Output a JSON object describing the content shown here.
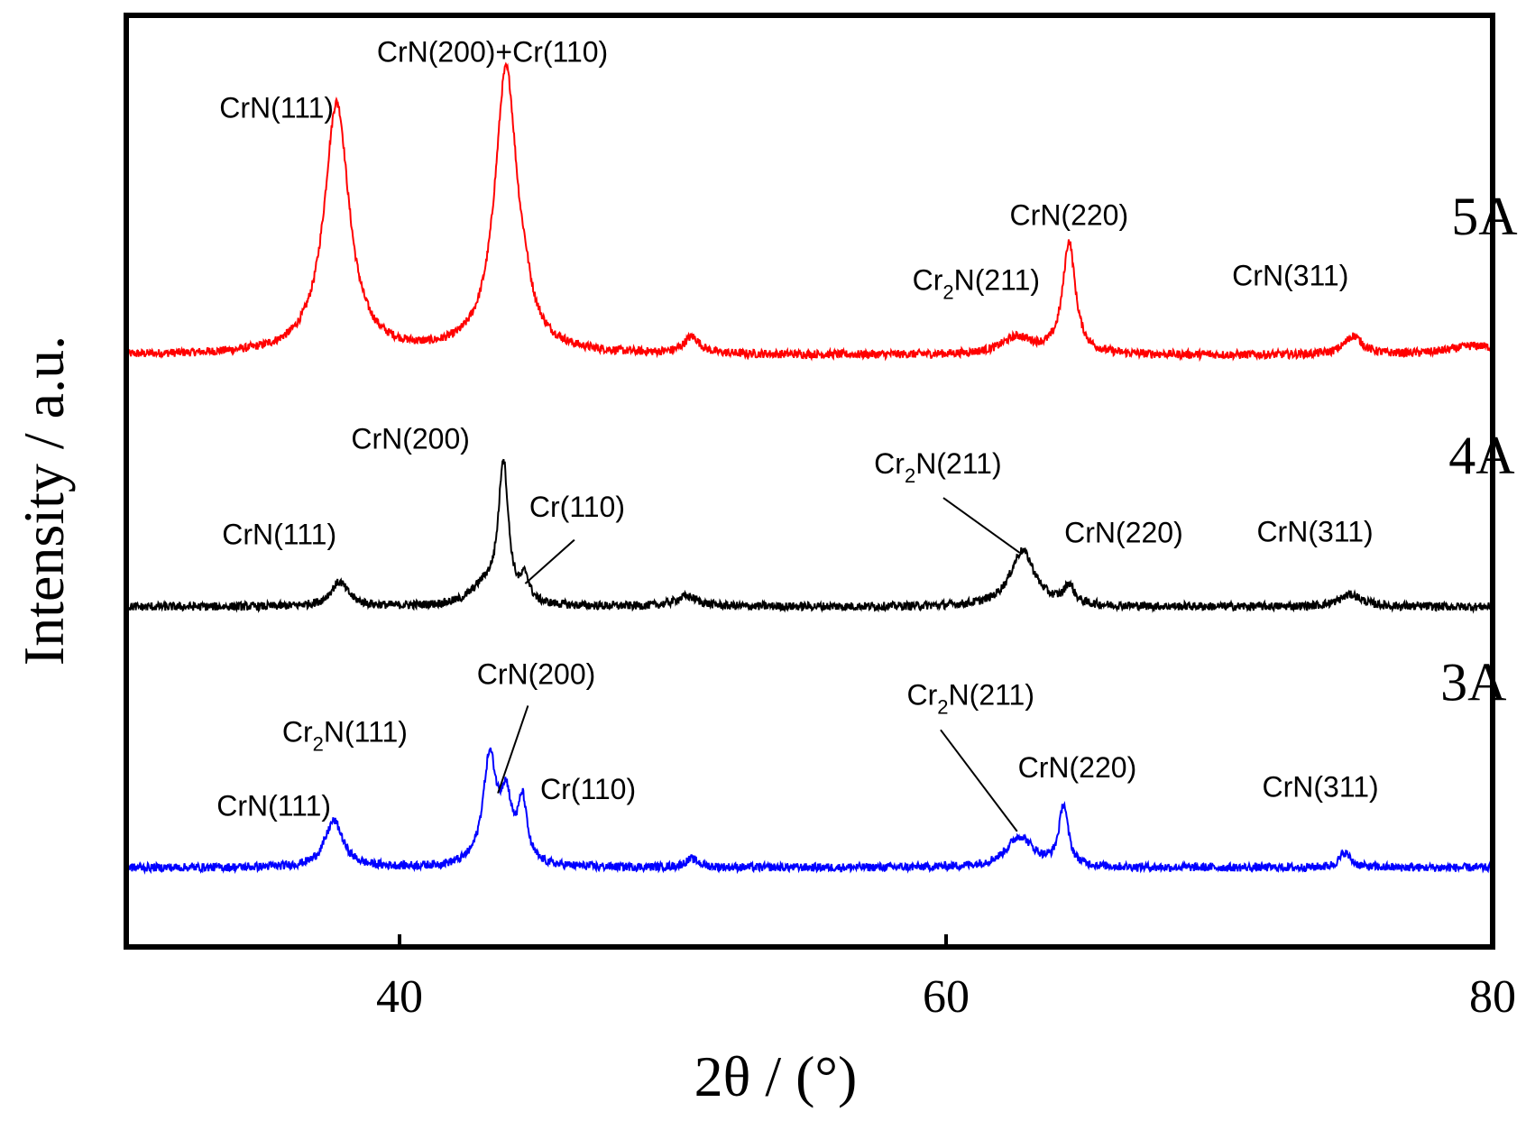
{
  "chart_data": {
    "type": "line",
    "title": "",
    "xlabel": "2θ / (°)",
    "ylabel": "Intensity / a.u.",
    "xlim": [
      30,
      80
    ],
    "ylim": [
      0,
      100
    ],
    "xticks": [
      40,
      60,
      80
    ],
    "xtick_labels": [
      "40",
      "60",
      "80"
    ],
    "yticks": [],
    "grid": false,
    "legend": "none",
    "series": [
      {
        "name": "5A",
        "color": "#ff0000",
        "baseline": 63.5,
        "noise": 0.45,
        "peaks": [
          {
            "x": 37.7,
            "height": 27.0,
            "width": 0.55
          },
          {
            "x": 43.9,
            "height": 30.5,
            "width": 0.5
          },
          {
            "x": 44.6,
            "height": 2.0,
            "width": 0.25
          },
          {
            "x": 50.7,
            "height": 1.8,
            "width": 0.35
          },
          {
            "x": 62.6,
            "height": 1.8,
            "width": 0.7
          },
          {
            "x": 64.5,
            "height": 12.0,
            "width": 0.28
          },
          {
            "x": 74.9,
            "height": 2.0,
            "width": 0.4
          },
          {
            "x": 79.4,
            "height": 1.0,
            "width": 1.2
          }
        ]
      },
      {
        "name": "4A",
        "color": "#000000",
        "baseline": 36.5,
        "noise": 0.45,
        "peaks": [
          {
            "x": 37.8,
            "height": 2.6,
            "width": 0.4
          },
          {
            "x": 43.1,
            "height": 2.0,
            "width": 0.6
          },
          {
            "x": 43.8,
            "height": 15.0,
            "width": 0.22
          },
          {
            "x": 44.6,
            "height": 2.6,
            "width": 0.18
          },
          {
            "x": 50.5,
            "height": 1.1,
            "width": 0.5
          },
          {
            "x": 62.8,
            "height": 6.0,
            "width": 0.55
          },
          {
            "x": 64.5,
            "height": 2.0,
            "width": 0.22
          },
          {
            "x": 74.8,
            "height": 1.3,
            "width": 0.5
          }
        ]
      },
      {
        "name": "3A",
        "color": "#0000ff",
        "baseline": 8.5,
        "noise": 0.45,
        "peaks": [
          {
            "x": 37.6,
            "height": 5.0,
            "width": 0.4
          },
          {
            "x": 43.3,
            "height": 11.5,
            "width": 0.3
          },
          {
            "x": 43.9,
            "height": 6.5,
            "width": 0.25
          },
          {
            "x": 44.5,
            "height": 6.5,
            "width": 0.2
          },
          {
            "x": 50.7,
            "height": 0.9,
            "width": 0.3
          },
          {
            "x": 62.7,
            "height": 3.3,
            "width": 0.6
          },
          {
            "x": 64.3,
            "height": 6.5,
            "width": 0.2
          },
          {
            "x": 74.6,
            "height": 1.6,
            "width": 0.25
          }
        ]
      }
    ],
    "series_labels": [
      "5A",
      "4A",
      "3A"
    ],
    "annotations": [
      {
        "series": "5A",
        "text": "CrN(111)",
        "x": 35.5,
        "y": 89
      },
      {
        "series": "5A",
        "text": "CrN(200)+Cr(110)",
        "x": 43.4,
        "y": 95
      },
      {
        "series": "5A",
        "text": "CrN(220)",
        "x": 64.5,
        "y": 77.5
      },
      {
        "series": "5A",
        "text_main": "Cr",
        "text_sub": "2",
        "text_rest": "N(211)",
        "x": 61.1,
        "y": 70.5
      },
      {
        "series": "5A",
        "text": "CrN(311)",
        "x": 72.6,
        "y": 71
      },
      {
        "series": "4A",
        "text": "CrN(200)",
        "x": 40.4,
        "y": 53.5
      },
      {
        "series": "4A",
        "text": "CrN(111)",
        "x": 35.6,
        "y": 43.2
      },
      {
        "series": "4A",
        "text": "Cr(110)",
        "x": 46.5,
        "y": 46.2
      },
      {
        "series": "4A",
        "text_main": "Cr",
        "text_sub": "2",
        "text_rest": "N(211)",
        "x": 59.7,
        "y": 50.8
      },
      {
        "series": "4A",
        "text": "CrN(220)",
        "x": 66.5,
        "y": 43.4
      },
      {
        "series": "4A",
        "text": "CrN(311)",
        "x": 73.5,
        "y": 43.5
      },
      {
        "series": "3A",
        "text": "CrN(200)",
        "x": 45.0,
        "y": 28.2
      },
      {
        "series": "3A",
        "text_main": "Cr",
        "text_sub": "2",
        "text_rest": "N(111)",
        "x": 38.0,
        "y": 22.0
      },
      {
        "series": "3A",
        "text": "CrN(111)",
        "x": 35.4,
        "y": 14.1
      },
      {
        "series": "3A",
        "text": "Cr(110)",
        "x": 46.9,
        "y": 15.9
      },
      {
        "series": "3A",
        "text_main": "Cr",
        "text_sub": "2",
        "text_rest": "N(211)",
        "x": 60.9,
        "y": 26.0
      },
      {
        "series": "3A",
        "text": "CrN(220)",
        "x": 64.8,
        "y": 18.2
      },
      {
        "series": "3A",
        "text": "CrN(311)",
        "x": 73.7,
        "y": 16.1
      }
    ],
    "leader_lines": [
      {
        "x1": 44.6,
        "y1": 39.0,
        "x2": 46.4,
        "y2": 43.7
      },
      {
        "x1": 59.9,
        "y1": 48.2,
        "x2": 62.7,
        "y2": 42.3
      },
      {
        "x1": 44.7,
        "y1": 25.9,
        "x2": 43.6,
        "y2": 16.5
      },
      {
        "x1": 59.8,
        "y1": 23.3,
        "x2": 62.6,
        "y2": 12.4
      }
    ]
  }
}
